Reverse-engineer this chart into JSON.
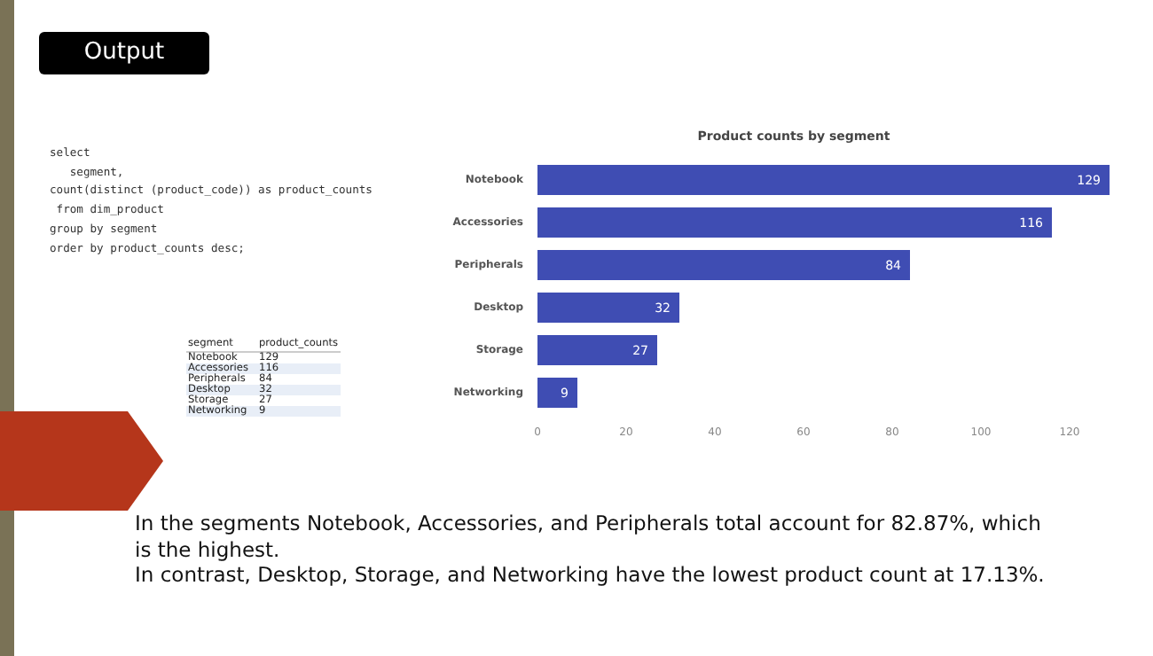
{
  "chart_data": {
    "type": "bar",
    "orientation": "horizontal",
    "title": "Product counts by segment",
    "categories": [
      "Notebook",
      "Accessories",
      "Peripherals",
      "Desktop",
      "Storage",
      "Networking"
    ],
    "values": [
      129,
      116,
      84,
      32,
      27,
      9
    ],
    "color": "#3f4db3",
    "xlim": [
      0,
      130
    ],
    "xticks": [
      0,
      20,
      40,
      60,
      80,
      100,
      120
    ],
    "grid": false,
    "data_labels": true,
    "annotations": [
      "Output",
      "select\n   segment,\ncount(distinct (product_code)) as product_counts\n from dim_product\ngroup by segment\norder by product_counts desc;",
      "segment",
      "product_counts",
      "In the segments Notebook, Accessories, and Peripherals  total account for 82.87%, which is the highest.",
      "In contrast, Desktop, Storage, and Networking have the lowest product count at 17.13%.",
      "129",
      "116",
      "84",
      "32",
      "27",
      "9"
    ]
  }
}
